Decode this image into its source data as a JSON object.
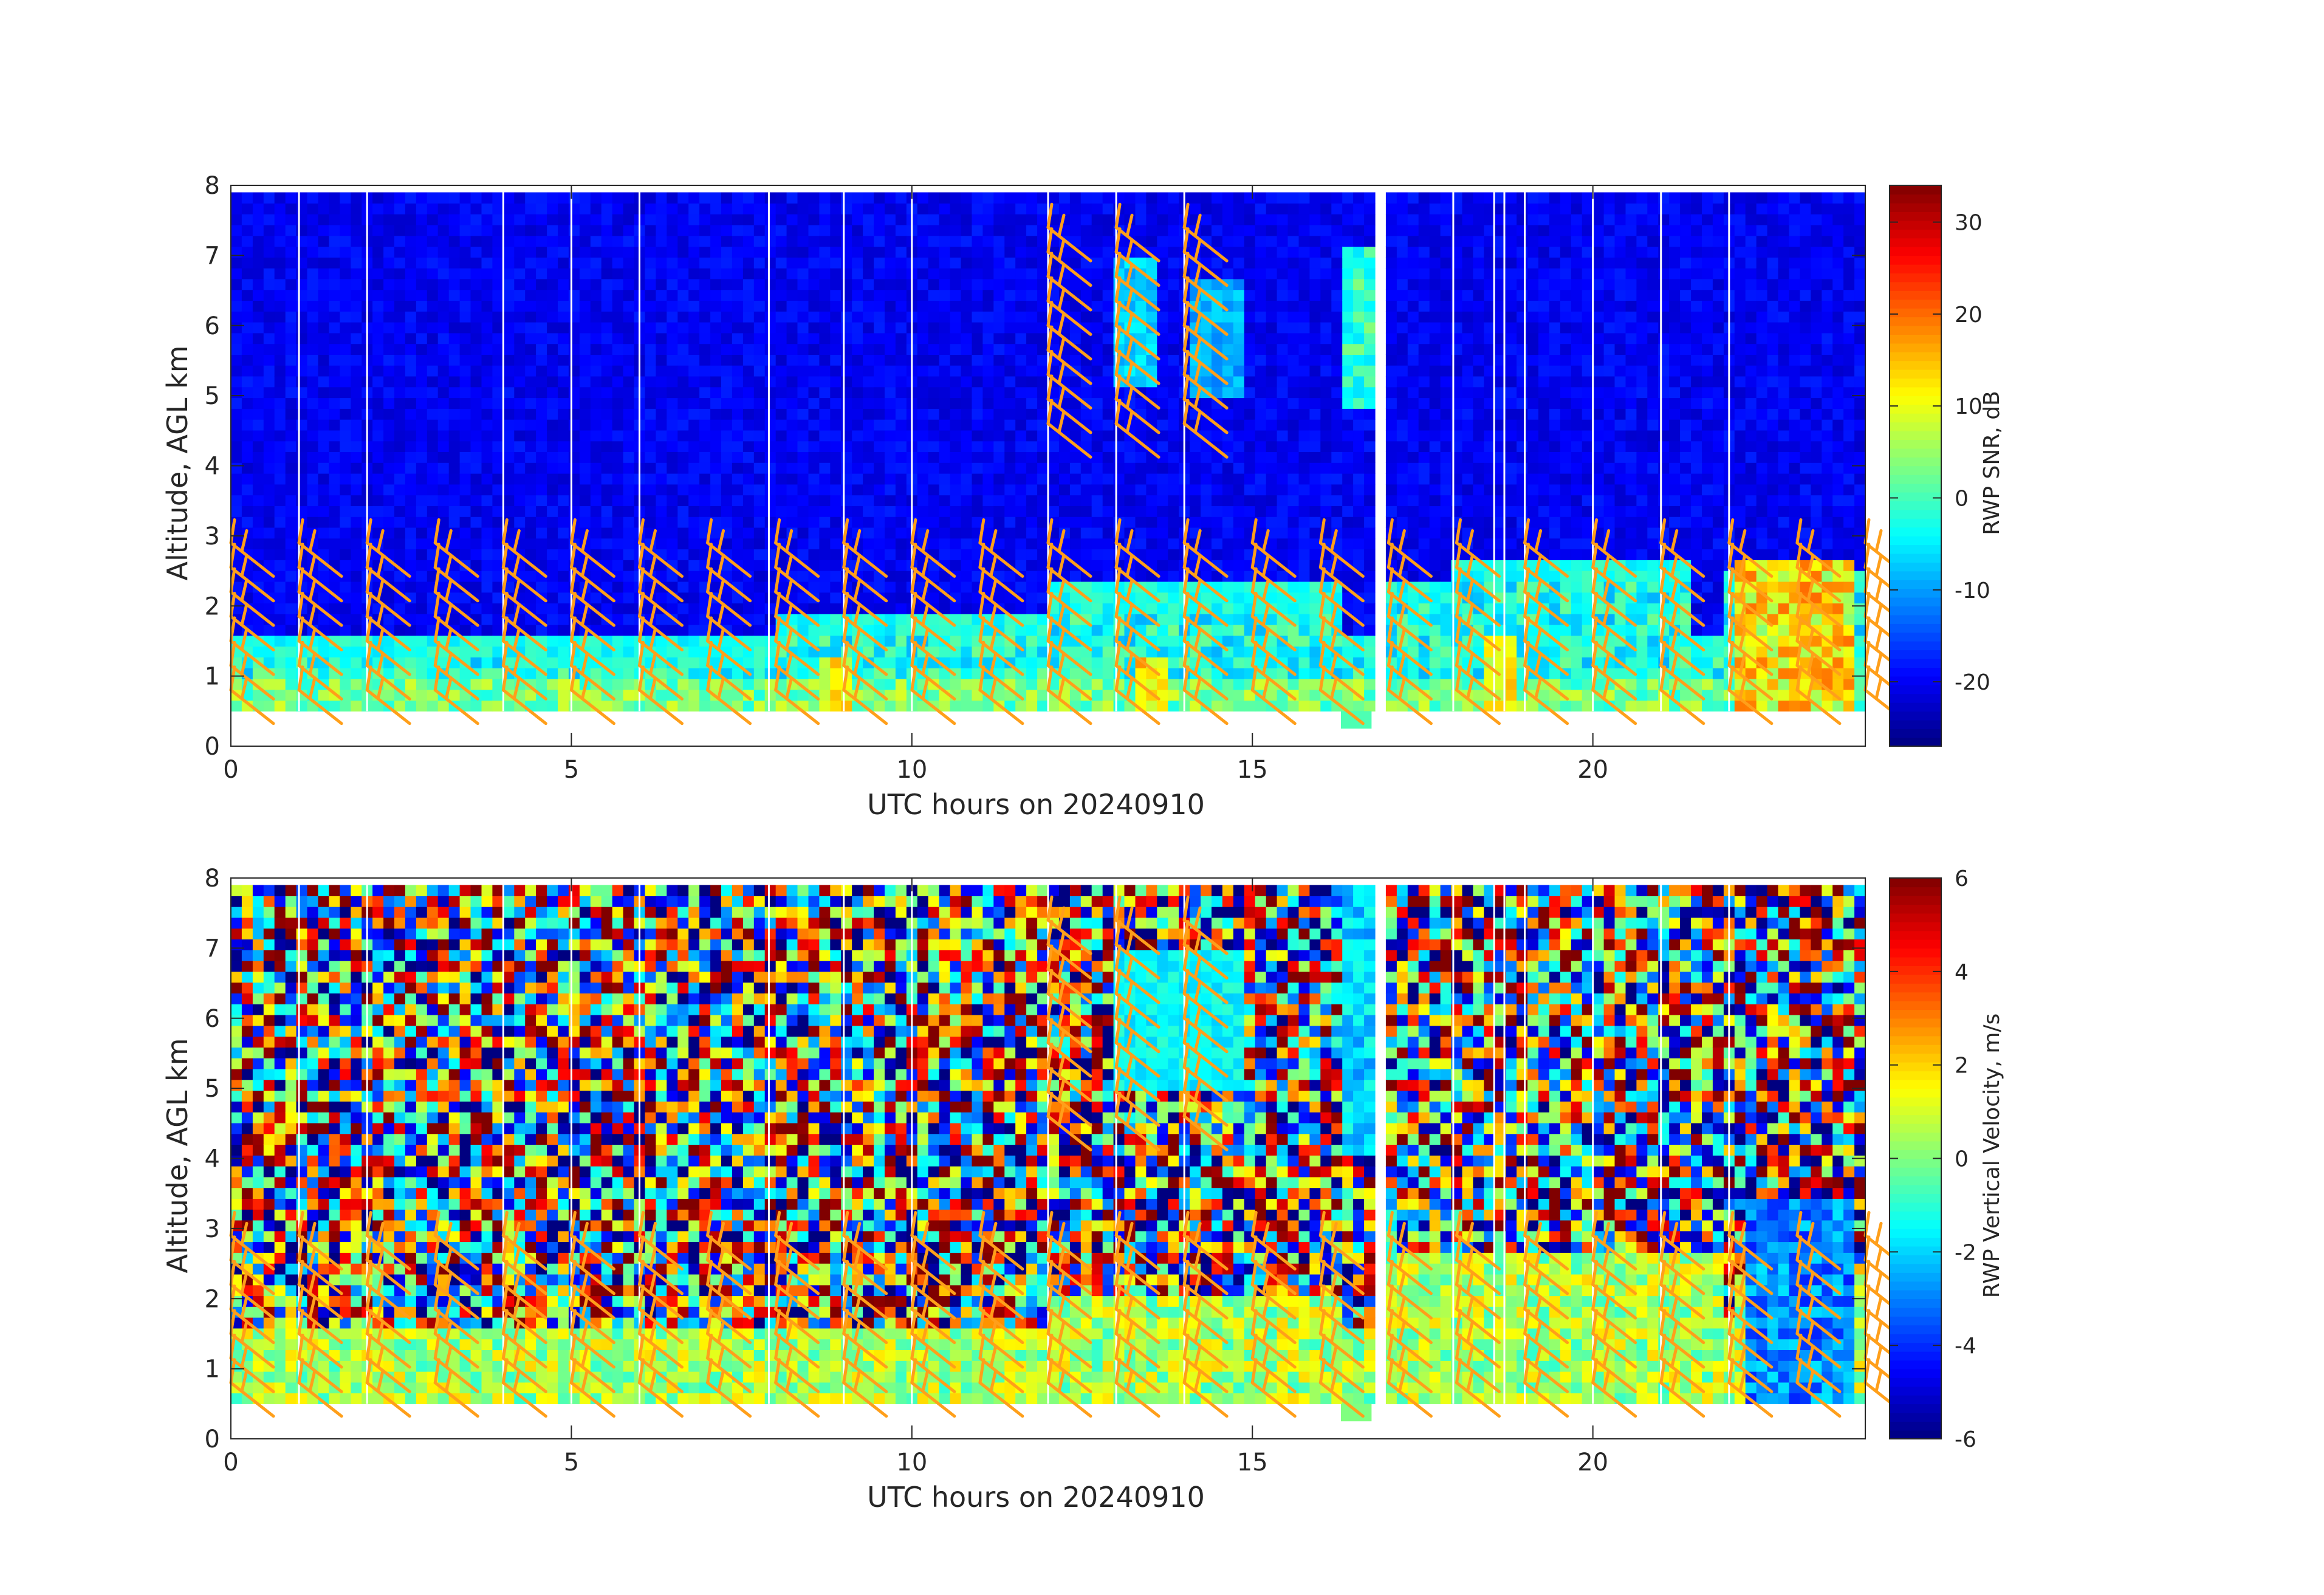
{
  "chart_data": [
    {
      "type": "heatmap",
      "title": "",
      "xlabel": "UTC hours on 20240910",
      "ylabel": "Altitude, AGL km",
      "xlim": [
        0,
        24
      ],
      "ylim": [
        0,
        8
      ],
      "xticks": [
        0,
        5,
        10,
        15,
        20
      ],
      "yticks": [
        0,
        1,
        2,
        3,
        4,
        5,
        6,
        7,
        8
      ],
      "colorbar": {
        "label": "RWP SNR, dB",
        "range": [
          -27,
          34
        ],
        "ticks": [
          -20,
          -10,
          0,
          10,
          20,
          30
        ],
        "colormap": "jet"
      },
      "data_range_km": [
        0.5,
        7.9
      ],
      "background_value": -20,
      "boundary_layer": [
        {
          "t0": 0,
          "t1": 4,
          "top": 1.45
        },
        {
          "t0": 4,
          "t1": 8,
          "top": 1.35
        },
        {
          "t0": 8,
          "t1": 12,
          "top": 1.7
        },
        {
          "t0": 12,
          "t1": 16.3,
          "top": 2.1
        },
        {
          "t0": 17,
          "t1": 18,
          "top": 2.2
        },
        {
          "t0": 18,
          "t1": 21.5,
          "top": 2.5
        },
        {
          "t0": 22,
          "t1": 24,
          "top": 2.3
        }
      ],
      "data_gaps_utc": [
        1.0,
        2.0,
        4.0,
        5.0,
        6.0,
        7.9,
        9.0,
        10.0,
        12.0,
        13.0,
        14.0,
        16.85,
        17.95,
        18.55,
        18.7,
        19.0,
        20.0,
        21.0,
        22.0
      ],
      "high_echo_columns_utc": [
        22.75,
        23.2,
        23.45,
        23.65
      ],
      "wind_barb_times_utc": [
        0,
        1,
        2,
        3,
        4,
        5,
        6,
        7,
        8,
        9,
        10,
        11,
        12,
        13,
        14,
        15,
        16,
        17,
        18,
        19,
        20,
        21,
        22,
        23,
        24
      ],
      "wind_barb_color": "#ff9f1a"
    },
    {
      "type": "heatmap",
      "title": "",
      "xlabel": "UTC hours on 20240910",
      "ylabel": "Altitude, AGL km",
      "xlim": [
        0,
        24
      ],
      "ylim": [
        0,
        8
      ],
      "xticks": [
        0,
        5,
        10,
        15,
        20
      ],
      "yticks": [
        0,
        1,
        2,
        3,
        4,
        5,
        6,
        7,
        8
      ],
      "colorbar": {
        "label": "RWP Vertical Velocity, m/s",
        "range": [
          -6,
          6
        ],
        "ticks": [
          -6,
          -4,
          -2,
          0,
          2,
          4,
          6
        ],
        "colormap": "jet"
      },
      "data_range_km": [
        0.5,
        7.9
      ],
      "boundary_layer_value": 0.5,
      "free_troposphere": "noise",
      "data_gaps_utc": [
        1.0,
        2.0,
        4.0,
        5.0,
        6.0,
        7.9,
        9.0,
        10.0,
        12.0,
        13.0,
        14.0,
        16.85,
        17.95,
        18.55,
        18.7,
        19.0,
        20.0,
        21.0,
        22.0
      ],
      "wind_barb_times_utc": [
        0,
        1,
        2,
        3,
        4,
        5,
        6,
        7,
        8,
        9,
        10,
        11,
        12,
        13,
        14,
        15,
        16,
        17,
        18,
        19,
        20,
        21,
        22,
        23,
        24
      ],
      "wind_barb_color": "#ff9f1a"
    }
  ]
}
